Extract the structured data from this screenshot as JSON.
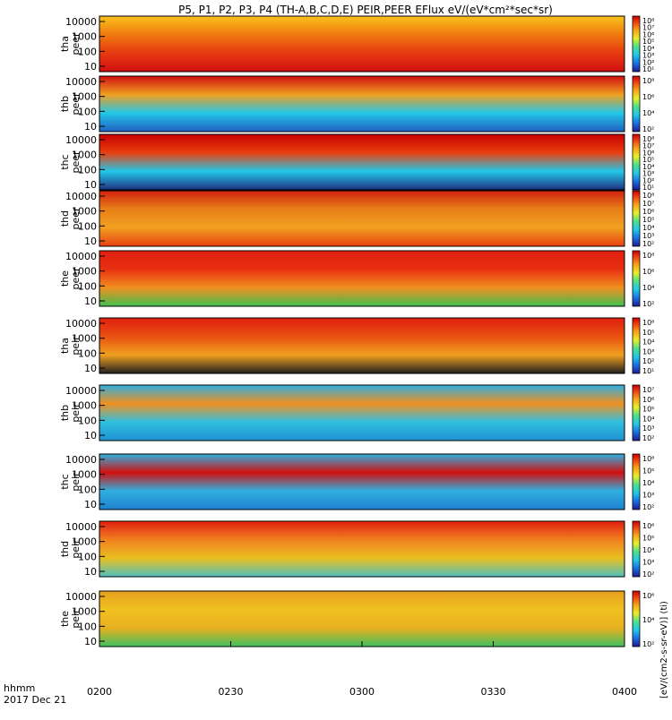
{
  "title": "P5, P1, P2, P3, P4 (TH-A,B,C,D,E) PEIR,PEER EFlux eV/(eV*cm²*sec*sr)",
  "colorbar_label": "[eV/(cm2-s-sr-eV)] (ti)",
  "x_axis": {
    "row_label": "hhmm",
    "date_label": "2017 Dec 21",
    "ticks": [
      "0200",
      "0230",
      "0300",
      "0330",
      "0400"
    ]
  },
  "chart_data": [
    {
      "type": "heatmap",
      "label": "tha peer",
      "probe": "tha",
      "species": "peer",
      "y_ticks": [
        "10000",
        "1000",
        "100",
        "10"
      ],
      "cbar_ticks": [
        "10⁸",
        "10⁷",
        "10⁶",
        "10⁵",
        "10⁴",
        "10³",
        "10²",
        "10¹"
      ]
    },
    {
      "type": "heatmap",
      "label": "thb peer",
      "probe": "thb",
      "species": "peer",
      "y_ticks": [
        "10000",
        "1000",
        "100",
        "10"
      ],
      "cbar_ticks": [
        "10⁸",
        "10⁶",
        "10⁴",
        "10²"
      ]
    },
    {
      "type": "heatmap",
      "label": "thc peer",
      "probe": "thc",
      "species": "peer",
      "y_ticks": [
        "10000",
        "1000",
        "100",
        "10"
      ],
      "cbar_ticks": [
        "10⁸",
        "10⁷",
        "10⁶",
        "10⁵",
        "10⁴",
        "10³",
        "10²",
        "10¹"
      ]
    },
    {
      "type": "heatmap",
      "label": "thd peer",
      "probe": "thd",
      "species": "peer",
      "y_ticks": [
        "10000",
        "1000",
        "100",
        "10"
      ],
      "cbar_ticks": [
        "10⁸",
        "10⁷",
        "10⁶",
        "10⁵",
        "10⁴",
        "10³",
        "10²"
      ]
    },
    {
      "type": "heatmap",
      "label": "the peer",
      "probe": "the",
      "species": "peer",
      "y_ticks": [
        "10000",
        "1000",
        "100",
        "10"
      ],
      "cbar_ticks": [
        "10⁸",
        "10⁶",
        "10⁴",
        "10²"
      ]
    },
    {
      "type": "heatmap",
      "label": "tha peir",
      "probe": "tha",
      "species": "peir",
      "y_ticks": [
        "10000",
        "1000",
        "100",
        "10"
      ],
      "cbar_ticks": [
        "10⁶",
        "10⁵",
        "10⁴",
        "10³",
        "10²",
        "10¹"
      ]
    },
    {
      "type": "heatmap",
      "label": "thb peir",
      "probe": "thb",
      "species": "peir",
      "y_ticks": [
        "10000",
        "1000",
        "100",
        "10"
      ],
      "cbar_ticks": [
        "10⁷",
        "10⁶",
        "10⁵",
        "10⁴",
        "10³",
        "10²"
      ]
    },
    {
      "type": "heatmap",
      "label": "thc peir",
      "probe": "thc",
      "species": "peir",
      "y_ticks": [
        "10000",
        "1000",
        "100",
        "10"
      ],
      "cbar_ticks": [
        "10⁶",
        "10⁵",
        "10⁴",
        "10³",
        "10²"
      ]
    },
    {
      "type": "heatmap",
      "label": "thd peir",
      "probe": "thd",
      "species": "peir",
      "y_ticks": [
        "10000",
        "1000",
        "100",
        "10"
      ],
      "cbar_ticks": [
        "10⁶",
        "10⁵",
        "10⁴",
        "10³",
        "10²"
      ]
    },
    {
      "type": "heatmap",
      "label": "the peir",
      "probe": "the",
      "species": "peir",
      "y_ticks": [
        "10000",
        "1000",
        "100",
        "10"
      ],
      "cbar_ticks": [
        "10⁶",
        "10⁴",
        "10²"
      ]
    }
  ]
}
